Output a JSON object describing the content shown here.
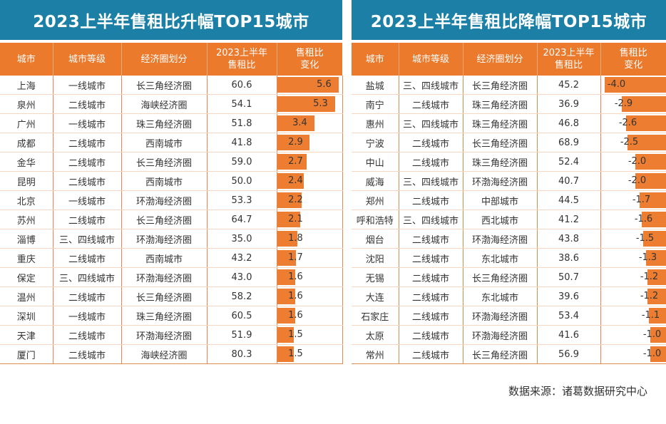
{
  "source": "数据来源：诸葛数据研究中心",
  "colors": {
    "title_bg": "#1b7fa6",
    "header_bg": "#ec7a2c",
    "bar": "#ed7d31"
  },
  "chart_data": [
    {
      "type": "table",
      "title": "2023上半年售租比升幅TOP15城市",
      "columns": [
        "城市",
        "城市等级",
        "经济圈划分",
        "2023上半年\n售租比",
        "售租比\n变化"
      ],
      "bar_max": 5.6,
      "rows": [
        [
          "上海",
          "一线城市",
          "长三角经济圈",
          "60.6",
          "5.6"
        ],
        [
          "泉州",
          "二线城市",
          "海峡经济圈",
          "54.1",
          "5.3"
        ],
        [
          "广州",
          "一线城市",
          "珠三角经济圈",
          "51.8",
          "3.4"
        ],
        [
          "成都",
          "二线城市",
          "西南城市",
          "41.8",
          "2.9"
        ],
        [
          "金华",
          "二线城市",
          "长三角经济圈",
          "59.0",
          "2.7"
        ],
        [
          "昆明",
          "二线城市",
          "西南城市",
          "50.0",
          "2.4"
        ],
        [
          "北京",
          "一线城市",
          "环渤海经济圈",
          "53.3",
          "2.2"
        ],
        [
          "苏州",
          "二线城市",
          "长三角经济圈",
          "64.7",
          "2.1"
        ],
        [
          "淄博",
          "三、四线城市",
          "环渤海经济圈",
          "35.0",
          "1.8"
        ],
        [
          "重庆",
          "二线城市",
          "西南城市",
          "43.2",
          "1.7"
        ],
        [
          "保定",
          "三、四线城市",
          "环渤海经济圈",
          "43.0",
          "1.6"
        ],
        [
          "温州",
          "二线城市",
          "长三角经济圈",
          "58.2",
          "1.6"
        ],
        [
          "深圳",
          "一线城市",
          "珠三角经济圈",
          "60.5",
          "1.6"
        ],
        [
          "天津",
          "二线城市",
          "环渤海经济圈",
          "51.9",
          "1.5"
        ],
        [
          "厦门",
          "二线城市",
          "海峡经济圈",
          "80.3",
          "1.5"
        ]
      ]
    },
    {
      "type": "table",
      "title": "2023上半年售租比降幅TOP15城市",
      "columns": [
        "城市",
        "城市等级",
        "经济圈划分",
        "2023上半年\n售租比",
        "售租比\n变化"
      ],
      "bar_max": 4.0,
      "rows": [
        [
          "盐城",
          "三、四线城市",
          "长三角经济圈",
          "45.2",
          "-4.0"
        ],
        [
          "南宁",
          "二线城市",
          "珠三角经济圈",
          "36.9",
          "-2.9"
        ],
        [
          "惠州",
          "三、四线城市",
          "珠三角经济圈",
          "46.8",
          "-2.6"
        ],
        [
          "宁波",
          "二线城市",
          "长三角经济圈",
          "68.9",
          "-2.5"
        ],
        [
          "中山",
          "二线城市",
          "珠三角经济圈",
          "52.4",
          "-2.0"
        ],
        [
          "威海",
          "三、四线城市",
          "环渤海经济圈",
          "40.7",
          "-2.0"
        ],
        [
          "郑州",
          "二线城市",
          "中部城市",
          "44.5",
          "-1.7"
        ],
        [
          "呼和浩特",
          "三、四线城市",
          "西北城市",
          "41.2",
          "-1.6"
        ],
        [
          "烟台",
          "二线城市",
          "环渤海经济圈",
          "43.8",
          "-1.5"
        ],
        [
          "沈阳",
          "二线城市",
          "东北城市",
          "38.6",
          "-1.3"
        ],
        [
          "无锡",
          "二线城市",
          "长三角经济圈",
          "50.7",
          "-1.2"
        ],
        [
          "大连",
          "二线城市",
          "东北城市",
          "39.6",
          "-1.2"
        ],
        [
          "石家庄",
          "二线城市",
          "环渤海经济圈",
          "53.4",
          "-1.1"
        ],
        [
          "太原",
          "二线城市",
          "环渤海经济圈",
          "41.6",
          "-1.0"
        ],
        [
          "常州",
          "二线城市",
          "长三角经济圈",
          "56.9",
          "-1.0"
        ]
      ]
    }
  ]
}
